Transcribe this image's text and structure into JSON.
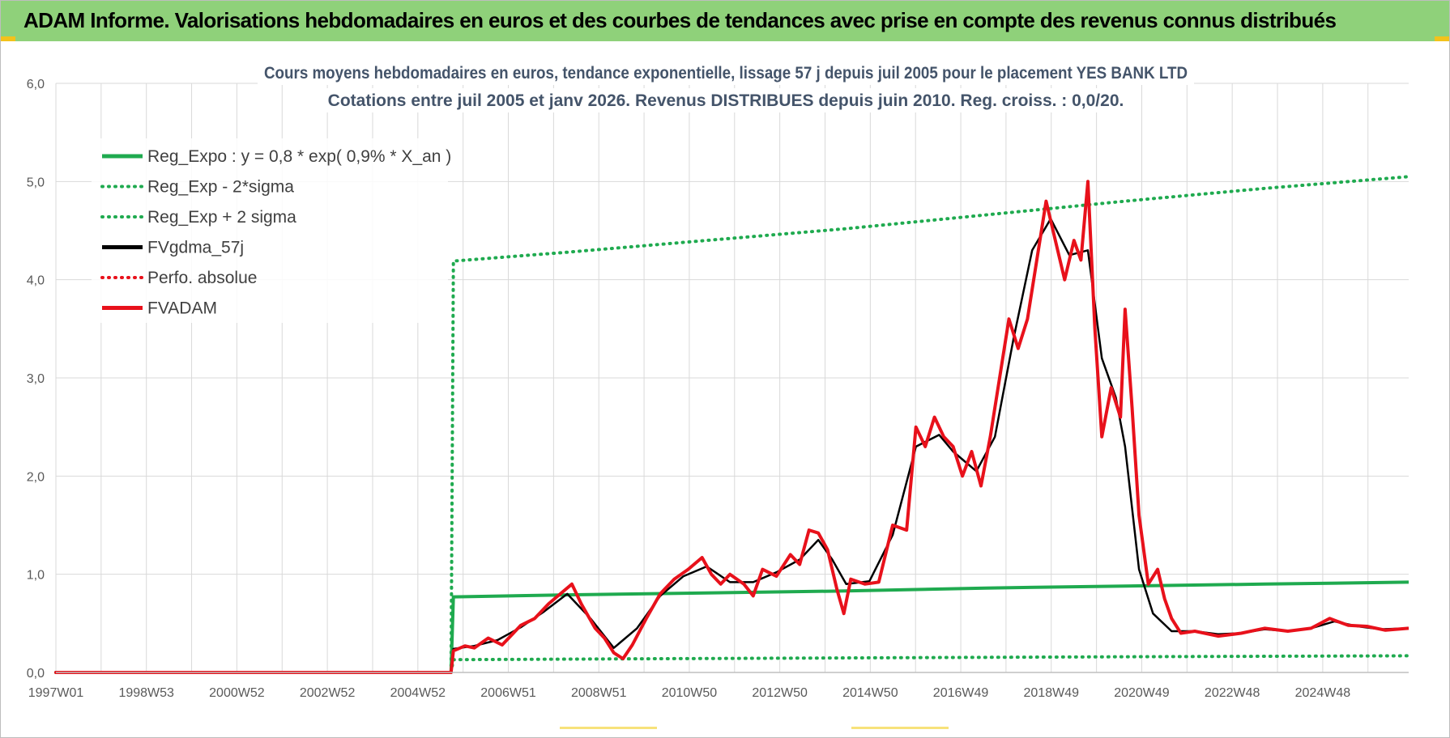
{
  "header": {
    "title": "ADAM Informe. Valorisations hebdomadaires en euros et des courbes de tendances avec prise en compte des revenus connus distribués"
  },
  "colors": {
    "header_bg": "#8fd17a",
    "reg_expo": "#1faa4f",
    "fvgdma": "#000000",
    "fvadam": "#e8111b",
    "perfo": "#e8111b",
    "grid": "#d9d9d9"
  },
  "chart_data": {
    "type": "line",
    "title": [
      "Cours moyens hebdomadaires en euros, tendance exponentielle, lissage 57 j depuis juil 2005 pour le placement YES BANK LTD",
      "Cotations entre juil 2005 et janv 2026. Revenus DISTRIBUES depuis juin 2010. Reg. croiss. : 0,0/20."
    ],
    "xlabel": "",
    "ylabel": "",
    "x_ticks": [
      "1997W01",
      "1998W53",
      "2000W52",
      "2002W52",
      "2004W52",
      "2006W51",
      "2008W51",
      "2010W50",
      "2012W50",
      "2014W50",
      "2016W49",
      "2018W49",
      "2020W49",
      "2022W48",
      "2024W48"
    ],
    "x_range": [
      1997.0,
      2026.1
    ],
    "y_ticks": [
      "0,0",
      "1,0",
      "2,0",
      "3,0",
      "4,0",
      "5,0",
      "6,0"
    ],
    "ylim": [
      0,
      6
    ],
    "grid": true,
    "legend_position": "top-left",
    "series": [
      {
        "name": "Reg_Expo : y = 0,8 * exp( 0,9% *  X_an )",
        "style": "solid",
        "color": "#1faa4f",
        "points": [
          [
            1997.0,
            0.0
          ],
          [
            2005.5,
            0.0
          ],
          [
            2005.55,
            0.77
          ],
          [
            2008.0,
            0.79
          ],
          [
            2011.0,
            0.81
          ],
          [
            2014.0,
            0.83
          ],
          [
            2017.0,
            0.86
          ],
          [
            2020.0,
            0.88
          ],
          [
            2023.0,
            0.9
          ],
          [
            2026.1,
            0.92
          ]
        ]
      },
      {
        "name": "Reg_Exp - 2*sigma",
        "style": "dotted",
        "color": "#1faa4f",
        "points": [
          [
            1997.0,
            0.0
          ],
          [
            2005.5,
            0.0
          ],
          [
            2005.55,
            0.13
          ],
          [
            2010.0,
            0.14
          ],
          [
            2015.0,
            0.15
          ],
          [
            2020.0,
            0.16
          ],
          [
            2026.1,
            0.17
          ]
        ]
      },
      {
        "name": "Reg_Exp + 2 sigma",
        "style": "dotted",
        "color": "#1faa4f",
        "points": [
          [
            1997.0,
            0.0
          ],
          [
            2005.5,
            0.0
          ],
          [
            2005.55,
            4.19
          ],
          [
            2008.0,
            4.28
          ],
          [
            2011.0,
            4.4
          ],
          [
            2014.0,
            4.52
          ],
          [
            2017.0,
            4.66
          ],
          [
            2020.0,
            4.8
          ],
          [
            2023.0,
            4.93
          ],
          [
            2026.1,
            5.05
          ]
        ]
      },
      {
        "name": "FVgdma_57j",
        "style": "solid",
        "color": "#000000",
        "points": [
          [
            1997.0,
            0.0
          ],
          [
            2005.5,
            0.0
          ],
          [
            2005.55,
            0.24
          ],
          [
            2006.0,
            0.27
          ],
          [
            2006.5,
            0.33
          ],
          [
            2007.0,
            0.46
          ],
          [
            2007.5,
            0.62
          ],
          [
            2008.0,
            0.8
          ],
          [
            2008.5,
            0.55
          ],
          [
            2009.0,
            0.25
          ],
          [
            2009.5,
            0.45
          ],
          [
            2010.0,
            0.78
          ],
          [
            2010.5,
            0.98
          ],
          [
            2011.0,
            1.08
          ],
          [
            2011.5,
            0.92
          ],
          [
            2012.0,
            0.92
          ],
          [
            2012.5,
            1.02
          ],
          [
            2013.0,
            1.15
          ],
          [
            2013.4,
            1.35
          ],
          [
            2013.7,
            1.15
          ],
          [
            2014.0,
            0.9
          ],
          [
            2014.5,
            0.93
          ],
          [
            2015.0,
            1.4
          ],
          [
            2015.5,
            2.3
          ],
          [
            2016.0,
            2.42
          ],
          [
            2016.3,
            2.25
          ],
          [
            2016.8,
            2.05
          ],
          [
            2017.2,
            2.4
          ],
          [
            2017.6,
            3.4
          ],
          [
            2018.0,
            4.3
          ],
          [
            2018.4,
            4.62
          ],
          [
            2018.8,
            4.25
          ],
          [
            2019.2,
            4.3
          ],
          [
            2019.5,
            3.2
          ],
          [
            2019.8,
            2.8
          ],
          [
            2020.0,
            2.3
          ],
          [
            2020.3,
            1.05
          ],
          [
            2020.6,
            0.6
          ],
          [
            2021.0,
            0.42
          ],
          [
            2021.5,
            0.42
          ],
          [
            2022.0,
            0.39
          ],
          [
            2022.5,
            0.4
          ],
          [
            2023.0,
            0.44
          ],
          [
            2023.5,
            0.42
          ],
          [
            2024.0,
            0.45
          ],
          [
            2024.5,
            0.52
          ],
          [
            2025.0,
            0.47
          ],
          [
            2025.5,
            0.44
          ],
          [
            2026.1,
            0.45
          ]
        ]
      },
      {
        "name": "Perfo. absolue",
        "style": "dotted",
        "color": "#e8111b",
        "points": [
          [
            1997.0,
            0.0
          ],
          [
            2005.5,
            0.0
          ]
        ]
      },
      {
        "name": "FVADAM",
        "style": "solid",
        "color": "#e8111b",
        "points": [
          [
            1997.0,
            0.0
          ],
          [
            2005.5,
            0.0
          ],
          [
            2005.55,
            0.22
          ],
          [
            2005.8,
            0.27
          ],
          [
            2006.0,
            0.25
          ],
          [
            2006.3,
            0.35
          ],
          [
            2006.6,
            0.28
          ],
          [
            2007.0,
            0.48
          ],
          [
            2007.3,
            0.55
          ],
          [
            2007.6,
            0.7
          ],
          [
            2007.9,
            0.82
          ],
          [
            2008.1,
            0.9
          ],
          [
            2008.3,
            0.7
          ],
          [
            2008.6,
            0.45
          ],
          [
            2008.8,
            0.35
          ],
          [
            2009.0,
            0.2
          ],
          [
            2009.2,
            0.14
          ],
          [
            2009.4,
            0.28
          ],
          [
            2009.7,
            0.55
          ],
          [
            2010.0,
            0.8
          ],
          [
            2010.3,
            0.95
          ],
          [
            2010.6,
            1.05
          ],
          [
            2010.9,
            1.17
          ],
          [
            2011.1,
            1.0
          ],
          [
            2011.3,
            0.9
          ],
          [
            2011.5,
            1.0
          ],
          [
            2011.8,
            0.9
          ],
          [
            2012.0,
            0.78
          ],
          [
            2012.2,
            1.05
          ],
          [
            2012.5,
            0.98
          ],
          [
            2012.8,
            1.2
          ],
          [
            2013.0,
            1.1
          ],
          [
            2013.2,
            1.45
          ],
          [
            2013.4,
            1.42
          ],
          [
            2013.6,
            1.25
          ],
          [
            2013.8,
            0.85
          ],
          [
            2013.95,
            0.6
          ],
          [
            2014.1,
            0.95
          ],
          [
            2014.4,
            0.9
          ],
          [
            2014.7,
            0.92
          ],
          [
            2015.0,
            1.5
          ],
          [
            2015.3,
            1.45
          ],
          [
            2015.5,
            2.5
          ],
          [
            2015.7,
            2.3
          ],
          [
            2015.9,
            2.6
          ],
          [
            2016.1,
            2.4
          ],
          [
            2016.3,
            2.3
          ],
          [
            2016.5,
            2.0
          ],
          [
            2016.7,
            2.25
          ],
          [
            2016.9,
            1.9
          ],
          [
            2017.1,
            2.4
          ],
          [
            2017.3,
            3.0
          ],
          [
            2017.5,
            3.6
          ],
          [
            2017.7,
            3.3
          ],
          [
            2017.9,
            3.6
          ],
          [
            2018.1,
            4.2
          ],
          [
            2018.3,
            4.8
          ],
          [
            2018.5,
            4.4
          ],
          [
            2018.7,
            4.0
          ],
          [
            2018.9,
            4.4
          ],
          [
            2019.05,
            4.2
          ],
          [
            2019.2,
            5.0
          ],
          [
            2019.35,
            3.5
          ],
          [
            2019.5,
            2.4
          ],
          [
            2019.7,
            2.9
          ],
          [
            2019.9,
            2.6
          ],
          [
            2020.0,
            3.7
          ],
          [
            2020.15,
            2.7
          ],
          [
            2020.3,
            1.6
          ],
          [
            2020.5,
            0.9
          ],
          [
            2020.7,
            1.05
          ],
          [
            2020.85,
            0.75
          ],
          [
            2021.0,
            0.55
          ],
          [
            2021.2,
            0.4
          ],
          [
            2021.5,
            0.42
          ],
          [
            2022.0,
            0.37
          ],
          [
            2022.5,
            0.4
          ],
          [
            2023.0,
            0.45
          ],
          [
            2023.5,
            0.42
          ],
          [
            2024.0,
            0.45
          ],
          [
            2024.4,
            0.55
          ],
          [
            2024.8,
            0.48
          ],
          [
            2025.2,
            0.47
          ],
          [
            2025.6,
            0.43
          ],
          [
            2026.1,
            0.45
          ]
        ]
      }
    ]
  }
}
